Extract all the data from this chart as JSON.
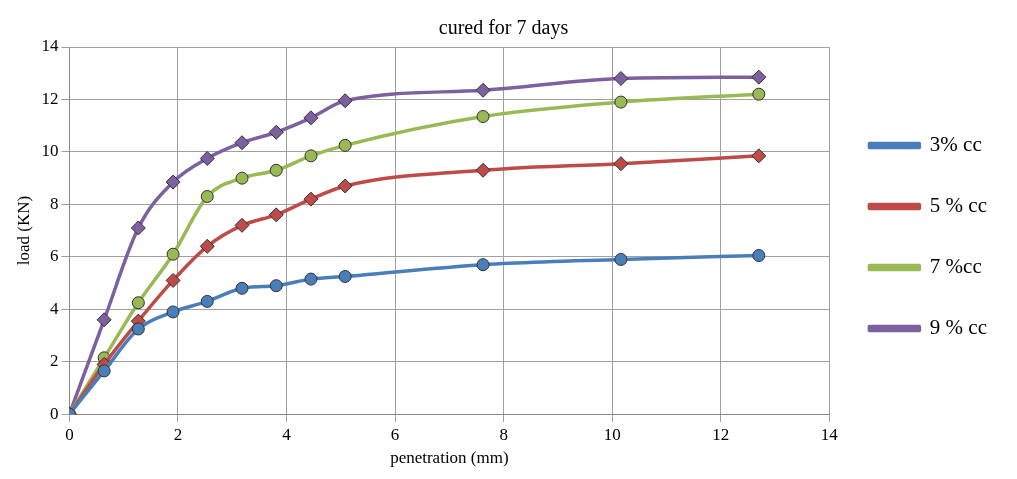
{
  "chart_data": {
    "type": "line",
    "title": "cured for 7 days",
    "xlabel": "penetration (mm)",
    "ylabel": "load (KN)",
    "x": [
      0,
      0.64,
      1.27,
      1.91,
      2.54,
      3.18,
      3.81,
      4.45,
      5.08,
      7.62,
      10.16,
      12.7
    ],
    "series": [
      {
        "name": "3% cc",
        "color": "#4a7ebb",
        "marker": "circle",
        "values": [
          0,
          1.65,
          3.25,
          3.9,
          4.3,
          4.8,
          4.9,
          5.15,
          5.25,
          5.7,
          5.9,
          6.05
        ]
      },
      {
        "name": "5 % cc",
        "color": "#be4b48",
        "marker": "diamond",
        "values": [
          0,
          1.9,
          3.55,
          5.1,
          6.4,
          7.2,
          7.6,
          8.2,
          8.7,
          9.3,
          9.55,
          9.85
        ]
      },
      {
        "name": "7 %cc",
        "color": "#98b954",
        "marker": "circle",
        "values": [
          0,
          2.15,
          4.25,
          6.1,
          8.3,
          9.0,
          9.3,
          9.85,
          10.25,
          11.35,
          11.9,
          12.2
        ]
      },
      {
        "name": "9 % cc",
        "color": "#7d60a0",
        "marker": "diamond",
        "values": [
          0,
          3.6,
          7.1,
          8.85,
          9.75,
          10.35,
          10.75,
          11.3,
          11.95,
          12.35,
          12.8,
          12.85
        ]
      }
    ],
    "xlim": [
      0,
      14
    ],
    "xticks": [
      0,
      2,
      4,
      6,
      8,
      10,
      12,
      14
    ],
    "ylim": [
      0,
      14
    ],
    "yticks": [
      0,
      2,
      4,
      6,
      8,
      10,
      12,
      14
    ],
    "grid": true,
    "legend": "right",
    "line_style": "solid"
  }
}
